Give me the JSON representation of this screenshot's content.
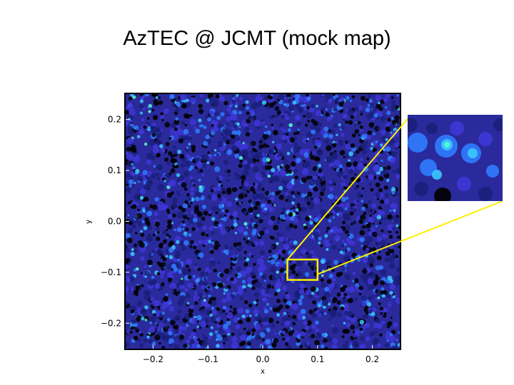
{
  "title": "AzTEC @ JCMT (mock map)",
  "chart_data": {
    "type": "heatmap",
    "title": "AzTEC @ JCMT (mock map)",
    "xlabel": "x",
    "ylabel": "y",
    "xlim": [
      -0.25,
      0.25
    ],
    "ylim": [
      -0.25,
      0.25
    ],
    "xticks": [
      -0.2,
      -0.1,
      0.0,
      0.1,
      0.2
    ],
    "yticks": [
      -0.2,
      -0.1,
      0.0,
      0.1,
      0.2
    ],
    "xtick_labels": [
      "−0.2",
      "−0.1",
      "0.0",
      "0.1",
      "0.2"
    ],
    "ytick_labels": [
      "0.2",
      "0.1",
      "0.0",
      "−0.1",
      "−0.2"
    ],
    "colormap": [
      "#000000",
      "#1a1f7a",
      "#3f36d8",
      "#2f7cff",
      "#3cc9ff",
      "#59ffd0"
    ],
    "background_color": "#2a2a9c",
    "zoom_region": {
      "x": [
        0.045,
        0.1
      ],
      "y": [
        -0.115,
        -0.075
      ]
    },
    "highlight_color": "#ffee00",
    "grid": false
  }
}
